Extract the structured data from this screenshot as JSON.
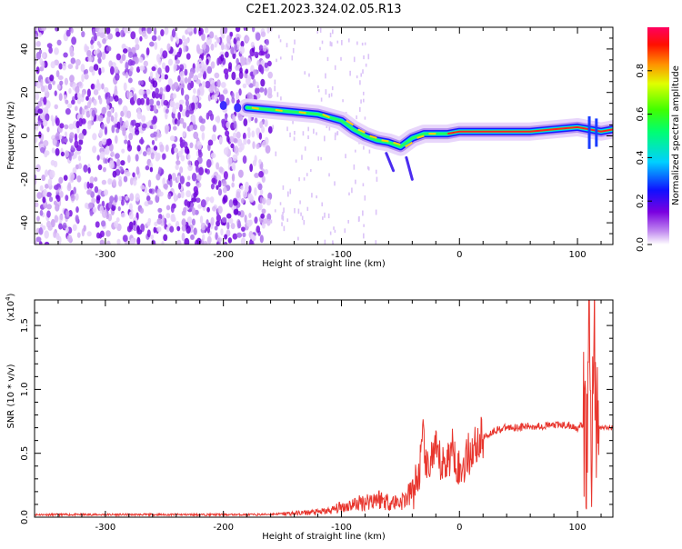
{
  "title": "C2E1.2023.324.02.05.R13",
  "chart_data": [
    {
      "type": "heatmap",
      "xlabel": "Height of straight line (km)",
      "ylabel": "Frequency (Hz)",
      "xlim": [
        -360,
        130
      ],
      "ylim": [
        -50,
        50
      ],
      "x_ticks": [
        -300,
        -200,
        -100,
        0,
        100
      ],
      "y_ticks": [
        -40,
        -20,
        0,
        20,
        40
      ],
      "colorbar": {
        "label": "Normalized spectral amplitude",
        "range": [
          0,
          1
        ],
        "ticks": [
          "0.0",
          "0.2",
          "0.4",
          "0.6",
          "0.8"
        ]
      },
      "ridge": {
        "x": [
          -180,
          -160,
          -140,
          -120,
          -100,
          -90,
          -80,
          -70,
          -60,
          -50,
          -40,
          -30,
          -20,
          -10,
          0,
          20,
          40,
          60,
          80,
          100,
          110,
          120,
          130
        ],
        "y": [
          13,
          12,
          11,
          10,
          7,
          3,
          0,
          -2,
          -3,
          -5,
          -1,
          1,
          1,
          1,
          2,
          2,
          2,
          2,
          3,
          4,
          3,
          2,
          3
        ]
      }
    },
    {
      "type": "line",
      "xlabel": "Height of straight line (km)",
      "ylabel": "SNR (10 * v/v)",
      "y_scale_label": "(x10",
      "y_scale_exp": "4",
      "xlim": [
        -360,
        130
      ],
      "ylim": [
        0,
        1.7
      ],
      "x_ticks": [
        -300,
        -200,
        -100,
        0,
        100
      ],
      "y_ticks": [
        "0.0",
        "0.5",
        "1.0",
        "1.5"
      ],
      "color": "#e8352d",
      "series": {
        "x": [
          -360,
          -300,
          -250,
          -200,
          -170,
          -140,
          -120,
          -110,
          -100,
          -90,
          -80,
          -70,
          -60,
          -50,
          -45,
          -40,
          -35,
          -32,
          -30,
          -28,
          -25,
          -20,
          -15,
          -10,
          -5,
          0,
          5,
          10,
          15,
          20,
          30,
          40,
          60,
          80,
          90,
          100,
          105,
          108,
          110,
          112,
          114,
          116,
          120,
          130
        ],
        "y": [
          0.02,
          0.02,
          0.02,
          0.02,
          0.02,
          0.03,
          0.04,
          0.05,
          0.08,
          0.1,
          0.12,
          0.15,
          0.12,
          0.12,
          0.15,
          0.2,
          0.3,
          0.5,
          0.65,
          0.3,
          0.45,
          0.5,
          0.4,
          0.45,
          0.55,
          0.35,
          0.45,
          0.52,
          0.58,
          0.62,
          0.68,
          0.7,
          0.71,
          0.72,
          0.72,
          0.7,
          0.72,
          0.5,
          1.6,
          0.2,
          1.7,
          0.7,
          0.7,
          0.7
        ]
      }
    }
  ]
}
